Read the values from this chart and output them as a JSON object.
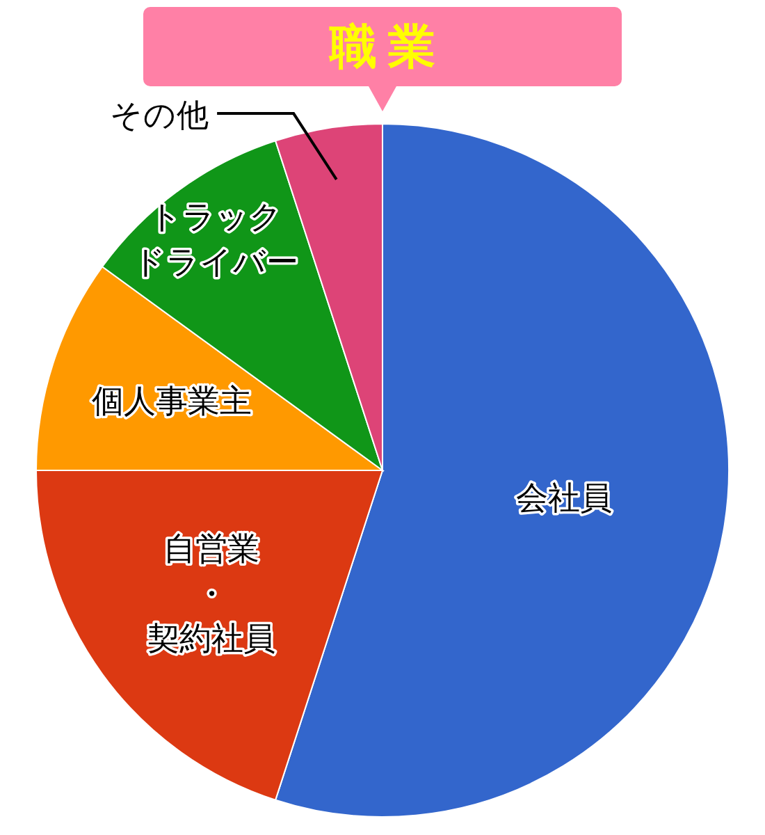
{
  "chart_data": {
    "type": "pie",
    "title": "職業",
    "categories": [
      "会社員",
      "自営業・契約社員",
      "個人事業主",
      "トラックドライバー",
      "その他"
    ],
    "values": [
      55,
      20,
      10,
      10,
      5
    ],
    "colors": [
      "#3366cc",
      "#dc3912",
      "#ff9900",
      "#109618",
      "#dd4477"
    ]
  }
}
